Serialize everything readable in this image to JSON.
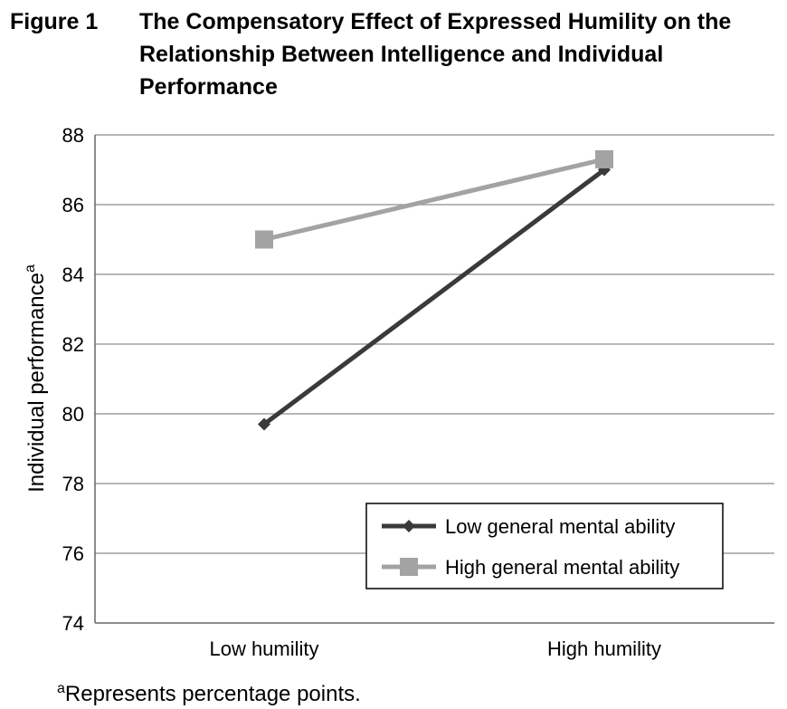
{
  "figure": {
    "label": "Figure 1",
    "title": "The Compensatory Effect of Expressed Humility on the Relationship Between Intelligence and Individual Performance"
  },
  "footnote": {
    "marker": "a",
    "text": "Represents percentage points."
  },
  "chart_data": {
    "type": "line",
    "title": "The Compensatory Effect of Expressed Humility on the Relationship Between Intelligence and Individual Performance",
    "xlabel": "",
    "ylabel": "Individual performance",
    "ylabel_superscript": "a",
    "categories": [
      "Low humility",
      "High humility"
    ],
    "ylim": [
      74,
      88
    ],
    "yticks": [
      74,
      76,
      78,
      80,
      82,
      84,
      86,
      88
    ],
    "grid": true,
    "legend_position": "bottom-right",
    "series": [
      {
        "name": "Low general mental ability",
        "values": [
          79.7,
          87.0
        ],
        "color": "#3a3a3a",
        "marker": "diamond"
      },
      {
        "name": "High general mental ability",
        "values": [
          85.0,
          87.3
        ],
        "color": "#a3a3a3",
        "marker": "square"
      }
    ]
  }
}
